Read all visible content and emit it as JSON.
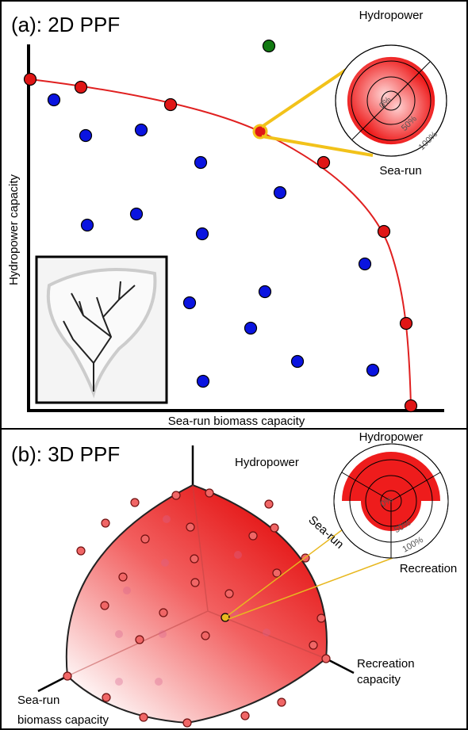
{
  "panel_a": {
    "title": "(a): 2D PPF",
    "y_axis_label": "Hydropower capacity",
    "x_axis_label": "Sea-run biomass capacity",
    "radar": {
      "top_label": "Hydropower",
      "bottom_label": "Sea-run",
      "ring_labels": [
        "0%",
        "50%",
        "100%"
      ]
    }
  },
  "panel_b": {
    "title": "(b): 3D PPF",
    "top_axis_label": "Hydropower",
    "right_axis_label": [
      "Recreation",
      "capacity"
    ],
    "left_axis_label": [
      "Sea-run",
      "biomass capacity"
    ],
    "radar": {
      "top_label": "Hydropower",
      "left_label": "Sea-run",
      "bottom_label": "Recreation",
      "ring_labels": [
        "0%",
        "50%",
        "100%"
      ]
    }
  }
}
